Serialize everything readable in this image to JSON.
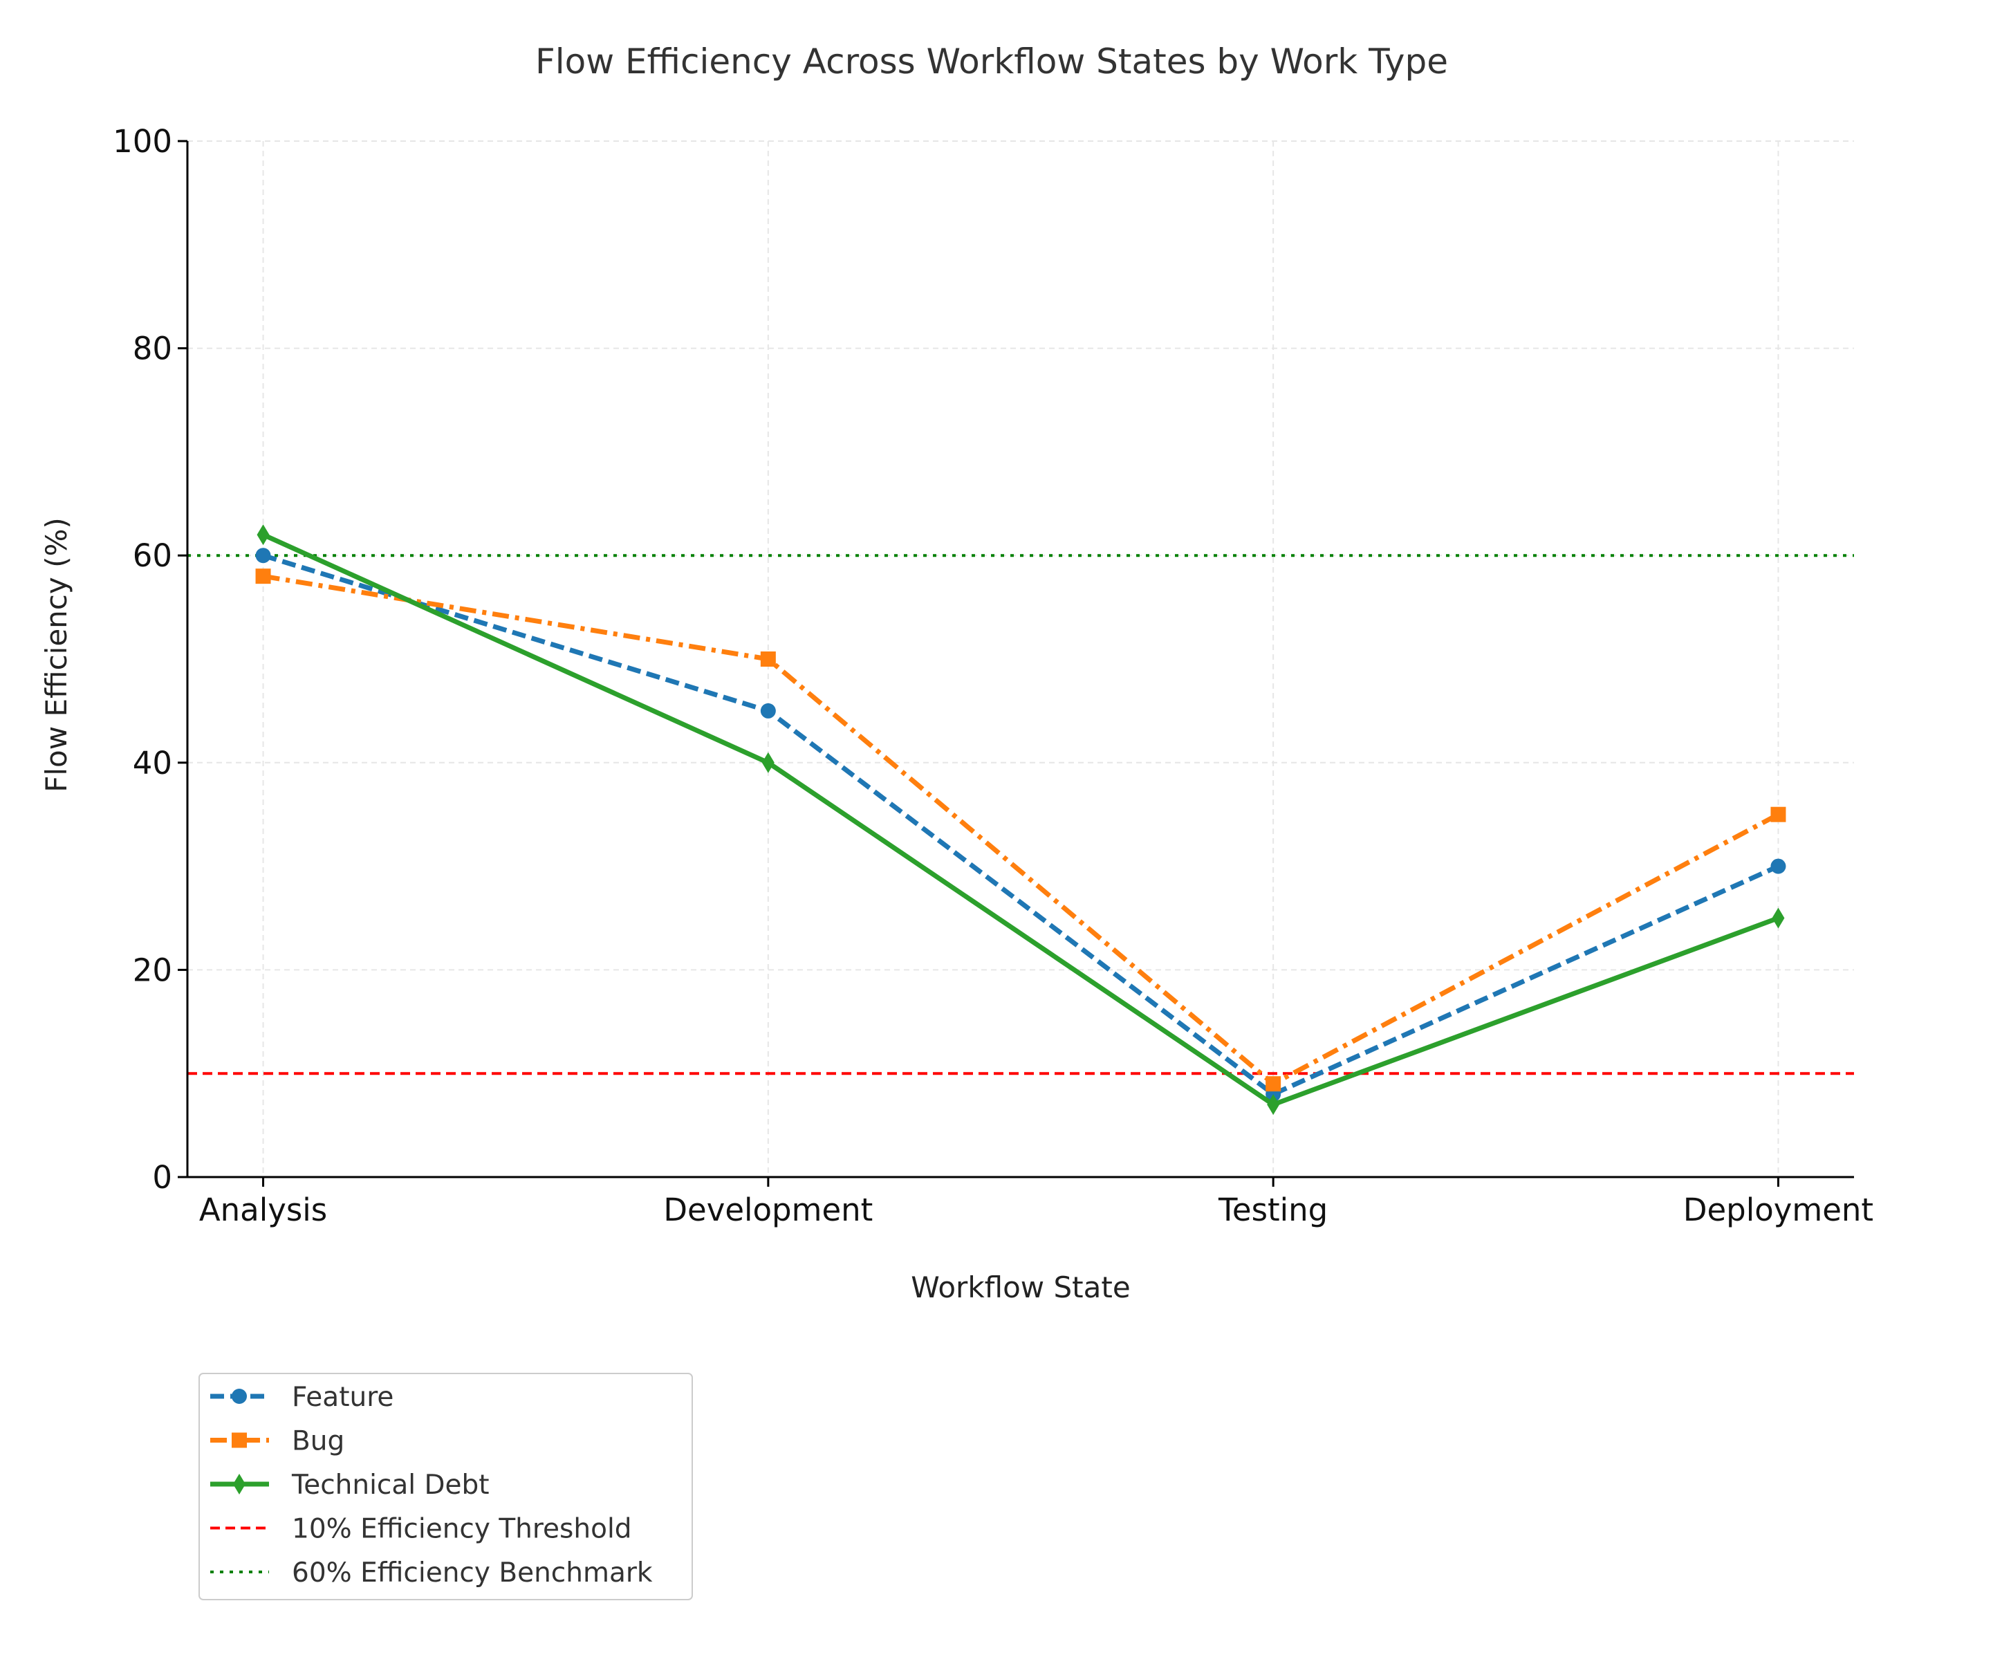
{
  "chart_data": {
    "type": "line",
    "title": "Flow Efficiency Across Workflow States by Work Type",
    "xlabel": "Workflow State",
    "ylabel": "Flow Efficiency (%)",
    "categories": [
      "Analysis",
      "Development",
      "Testing",
      "Deployment"
    ],
    "ylim": [
      0,
      100
    ],
    "yticks": [
      0,
      20,
      40,
      60,
      80,
      100
    ],
    "grid": true,
    "legend_position": "bottom-left (below plot)",
    "series": [
      {
        "name": "Feature",
        "values": [
          60,
          45,
          8,
          30
        ],
        "color": "#1f77b4",
        "linestyle": "dashed",
        "marker": "circle"
      },
      {
        "name": "Bug",
        "values": [
          58,
          50,
          9,
          35
        ],
        "color": "#ff7f0e",
        "linestyle": "dashdot",
        "marker": "square"
      },
      {
        "name": "Technical Debt",
        "values": [
          62,
          40,
          7,
          25
        ],
        "color": "#2ca02c",
        "linestyle": "solid",
        "marker": "diamond"
      }
    ],
    "reference_lines": [
      {
        "name": "10% Efficiency Threshold",
        "y": 10,
        "color": "#ff0000",
        "linestyle": "dashed"
      },
      {
        "name": "60% Efficiency Benchmark",
        "y": 60,
        "color": "#008000",
        "linestyle": "dotted"
      }
    ]
  }
}
